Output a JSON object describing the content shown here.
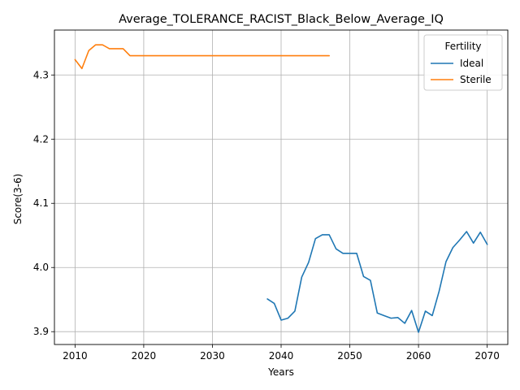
{
  "chart_data": {
    "type": "line",
    "title": "Average_TOLERANCE_RACIST_Black_Below_Average_IQ",
    "xlabel": "Years",
    "ylabel": "Score(3-6)",
    "xlim": [
      2007,
      2073
    ],
    "ylim": [
      3.88,
      4.37
    ],
    "xticks": [
      2010,
      2020,
      2030,
      2040,
      2050,
      2060,
      2070
    ],
    "yticks": [
      3.9,
      4.0,
      4.1,
      4.2,
      4.3
    ],
    "grid": true,
    "legend": {
      "title": "Fertility",
      "placement": "top-right",
      "entries": [
        "Ideal",
        "Sterile"
      ]
    },
    "series": [
      {
        "name": "Ideal",
        "color": "#1f77b4",
        "x": [
          2038,
          2039,
          2040,
          2041,
          2042,
          2043,
          2044,
          2045,
          2046,
          2047,
          2048,
          2049,
          2050,
          2051,
          2052,
          2053,
          2054,
          2055,
          2056,
          2057,
          2058,
          2059,
          2060,
          2061,
          2062,
          2063,
          2064,
          2065,
          2066,
          2067,
          2068,
          2069,
          2070
        ],
        "y": [
          3.951,
          3.944,
          3.918,
          3.921,
          3.932,
          3.985,
          4.008,
          4.045,
          4.051,
          4.051,
          4.029,
          4.022,
          4.022,
          4.022,
          3.986,
          3.98,
          3.929,
          3.925,
          3.921,
          3.922,
          3.913,
          3.933,
          3.899,
          3.932,
          3.925,
          3.963,
          4.009,
          4.031,
          4.043,
          4.056,
          4.038,
          4.055,
          4.036
        ]
      },
      {
        "name": "Sterile",
        "color": "#ff7f0e",
        "x": [
          2010,
          2011,
          2012,
          2013,
          2014,
          2015,
          2016,
          2017,
          2018,
          2019,
          2020,
          2021,
          2022,
          2023,
          2024,
          2025,
          2026,
          2027,
          2028,
          2029,
          2030,
          2031,
          2032,
          2033,
          2034,
          2035,
          2036,
          2037,
          2038,
          2039,
          2040,
          2041,
          2042,
          2043,
          2044,
          2045,
          2046,
          2047
        ],
        "y": [
          4.324,
          4.31,
          4.338,
          4.347,
          4.347,
          4.341,
          4.341,
          4.341,
          4.33,
          4.33,
          4.33,
          4.33,
          4.33,
          4.33,
          4.33,
          4.33,
          4.33,
          4.33,
          4.33,
          4.33,
          4.33,
          4.33,
          4.33,
          4.33,
          4.33,
          4.33,
          4.33,
          4.33,
          4.33,
          4.33,
          4.33,
          4.33,
          4.33,
          4.33,
          4.33,
          4.33,
          4.33,
          4.33
        ]
      }
    ]
  }
}
